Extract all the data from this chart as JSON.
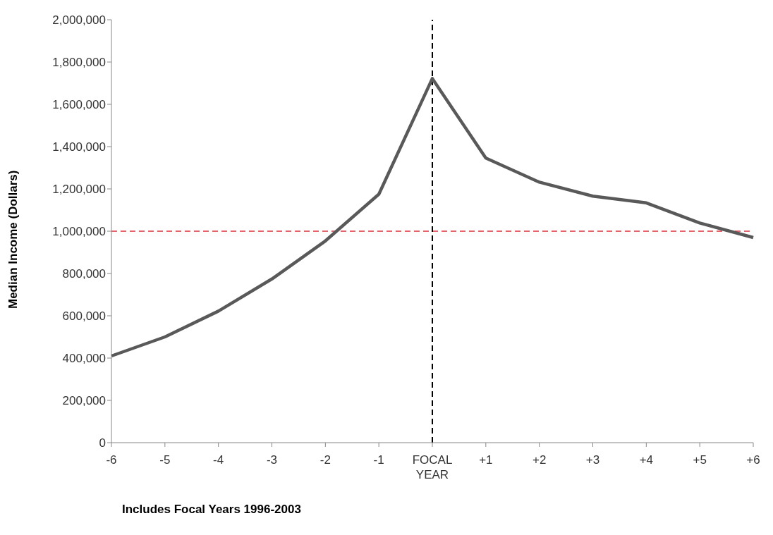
{
  "chart_data": {
    "type": "line",
    "ylabel": "Median Income (Dollars)",
    "categories": [
      "-6",
      "-5",
      "-4",
      "-3",
      "-2",
      "-1",
      "FOCAL YEAR",
      "+1",
      "+2",
      "+3",
      "+4",
      "+5",
      "+6"
    ],
    "series": [
      {
        "color": "#595959",
        "values": [
          410000,
          500000,
          622000,
          774000,
          954000,
          1175000,
          1722000,
          1346000,
          1232000,
          1166000,
          1134000,
          1039000,
          970000
        ]
      }
    ],
    "ylim": [
      0,
      2000000
    ],
    "yticks": [
      {
        "value": 0,
        "label": "0"
      },
      {
        "value": 200000,
        "label": "200,000"
      },
      {
        "value": 400000,
        "label": "400,000"
      },
      {
        "value": 600000,
        "label": "600,000"
      },
      {
        "value": 800000,
        "label": "800,000"
      },
      {
        "value": 1000000,
        "label": "1,000,000"
      },
      {
        "value": 1200000,
        "label": "1,200,000"
      },
      {
        "value": 1400000,
        "label": "1,400,000"
      },
      {
        "value": 1600000,
        "label": "1,600,000"
      },
      {
        "value": 1800000,
        "label": "1,800,000"
      },
      {
        "value": 2000000,
        "label": "2,000,000"
      }
    ],
    "ref_lines": [
      {
        "axis": "y",
        "value": 1000000,
        "color": "#e0303a",
        "line_style": "dashed"
      },
      {
        "axis": "x",
        "value": "FOCAL YEAR",
        "color": "#000000",
        "line_style": "dashed"
      }
    ],
    "annotations": [
      "Includes Focal Years 1996-2003"
    ],
    "grid": false,
    "legend": false,
    "marker": "none",
    "line_style": "solid"
  }
}
